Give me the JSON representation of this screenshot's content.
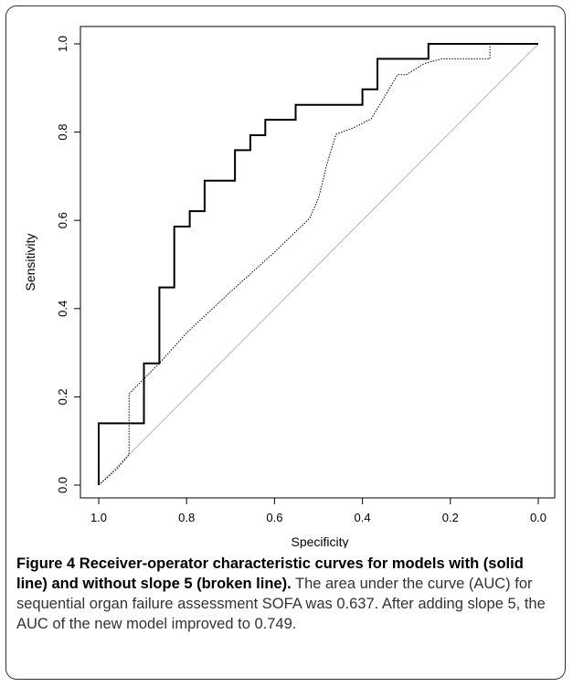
{
  "caption": {
    "figure_label": "Figure 4",
    "title": "Receiver-operator characteristic curves for models with (solid line) and without slope 5 (broken line).",
    "body": "The area under the curve (AUC) for sequential organ failure assessment SOFA was 0.637. After adding slope 5, the AUC of the new model improved to 0.749."
  },
  "chart_data": {
    "type": "line",
    "xlabel": "Specificity",
    "ylabel": "Sensitivity",
    "xlim": [
      1.0,
      0.0
    ],
    "ylim": [
      0.0,
      1.0
    ],
    "x_ticks": [
      "1.0",
      "0.8",
      "0.6",
      "0.4",
      "0.2",
      "0.0"
    ],
    "y_ticks": [
      "0.0",
      "0.2",
      "0.4",
      "0.6",
      "0.8",
      "1.0"
    ],
    "grid": false,
    "legend": "none",
    "series": [
      {
        "style": "solid",
        "color": "#000000",
        "points": [
          [
            1.0,
            0.0
          ],
          [
            1.0,
            0.14
          ],
          [
            0.897,
            0.14
          ],
          [
            0.897,
            0.276
          ],
          [
            0.862,
            0.276
          ],
          [
            0.862,
            0.448
          ],
          [
            0.828,
            0.448
          ],
          [
            0.828,
            0.586
          ],
          [
            0.793,
            0.586
          ],
          [
            0.793,
            0.621
          ],
          [
            0.759,
            0.621
          ],
          [
            0.759,
            0.69
          ],
          [
            0.69,
            0.69
          ],
          [
            0.69,
            0.759
          ],
          [
            0.655,
            0.759
          ],
          [
            0.655,
            0.793
          ],
          [
            0.621,
            0.793
          ],
          [
            0.621,
            0.828
          ],
          [
            0.552,
            0.828
          ],
          [
            0.552,
            0.862
          ],
          [
            0.4,
            0.862
          ],
          [
            0.4,
            0.897
          ],
          [
            0.366,
            0.897
          ],
          [
            0.366,
            0.966
          ],
          [
            0.25,
            0.966
          ],
          [
            0.25,
            1.0
          ],
          [
            0.0,
            1.0
          ]
        ]
      },
      {
        "style": "dotted",
        "color": "#000000",
        "points": [
          [
            1.0,
            0.0
          ],
          [
            0.96,
            0.035
          ],
          [
            0.931,
            0.069
          ],
          [
            0.931,
            0.207
          ],
          [
            0.862,
            0.276
          ],
          [
            0.8,
            0.345
          ],
          [
            0.7,
            0.438
          ],
          [
            0.6,
            0.528
          ],
          [
            0.52,
            0.605
          ],
          [
            0.5,
            0.65
          ],
          [
            0.48,
            0.73
          ],
          [
            0.46,
            0.795
          ],
          [
            0.42,
            0.81
          ],
          [
            0.38,
            0.83
          ],
          [
            0.35,
            0.88
          ],
          [
            0.32,
            0.93
          ],
          [
            0.3,
            0.93
          ],
          [
            0.26,
            0.955
          ],
          [
            0.22,
            0.966
          ],
          [
            0.11,
            0.966
          ],
          [
            0.11,
            1.0
          ],
          [
            0.0,
            1.0
          ]
        ]
      },
      {
        "style": "reference",
        "color": "#b8b8b8",
        "points": [
          [
            1.0,
            0.0
          ],
          [
            0.0,
            1.0
          ]
        ]
      }
    ]
  }
}
